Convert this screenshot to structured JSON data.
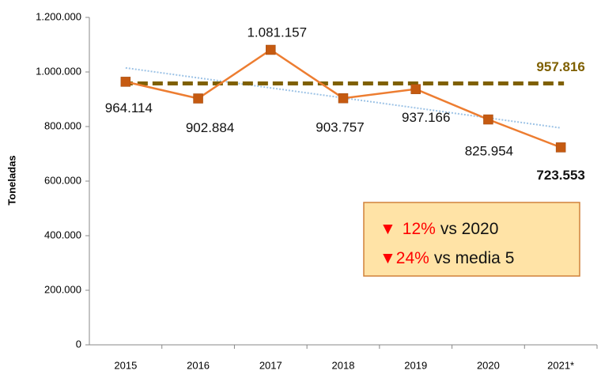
{
  "chart_data": {
    "type": "line",
    "y_axis_label": "Toneladas",
    "categories": [
      "2015",
      "2016",
      "2017",
      "2018",
      "2019",
      "2020",
      "2021*"
    ],
    "series": [
      {
        "color": "#ed7d31",
        "marker_color": "#c55a11",
        "values": [
          964114,
          902884,
          1081157,
          903757,
          937166,
          825954,
          723553
        ],
        "value_labels": [
          "964.114",
          "902.884",
          "1.081.157",
          "903.757",
          "937.166",
          "825.954",
          "723.553"
        ]
      }
    ],
    "average": {
      "value": 957816,
      "label": "957.816",
      "color": "#7f6000"
    },
    "trend_values": [
      1015000,
      795000
    ],
    "trend_color": "#9dc3e6",
    "ylim": [
      0,
      1200000
    ],
    "yticks": [
      0,
      {
        "value": 200000,
        "label": "200.000"
      },
      {
        "value": 400000,
        "label": "400.000"
      },
      {
        "value": 600000,
        "label": "600.000"
      },
      {
        "value": 800000,
        "label": "800.000"
      },
      {
        "value": 1000000,
        "label": "1.000.000"
      },
      {
        "value": 1200000,
        "label": "1.200.000"
      }
    ],
    "annotations": [
      {
        "symbol": "▼",
        "change": "12%",
        "text": "vs 2020"
      },
      {
        "symbol": "▼",
        "change": "24%",
        "text": "vs media 5"
      }
    ]
  }
}
